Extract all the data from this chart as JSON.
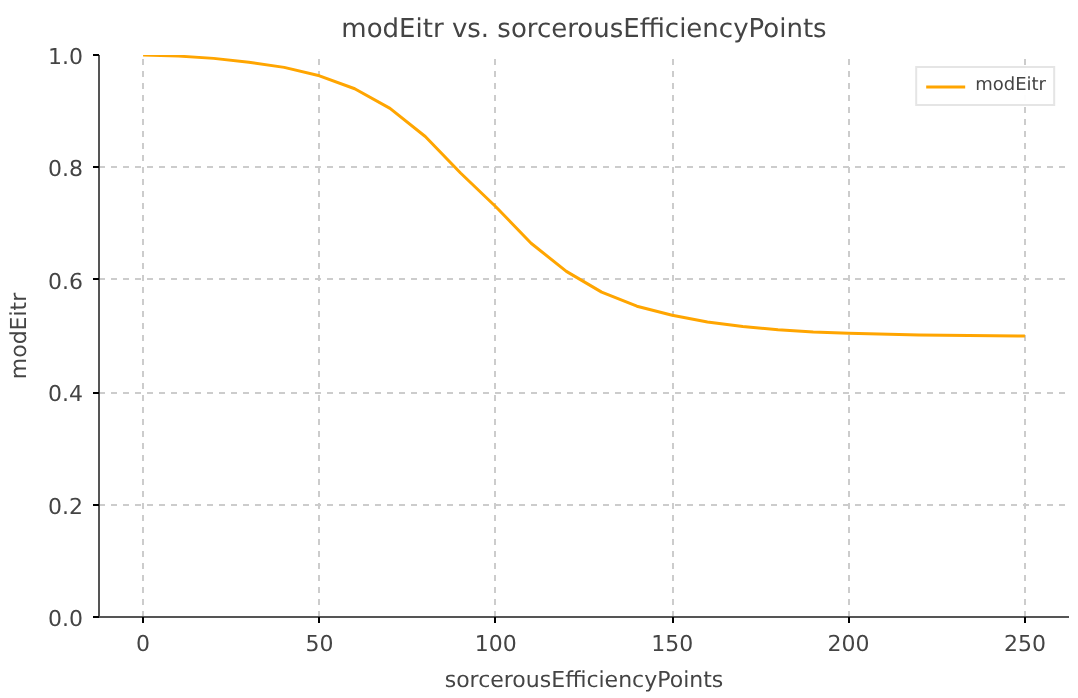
{
  "chart_data": {
    "type": "line",
    "title": "modEitr vs. sorcerousEfficiencyPoints",
    "xlabel": "sorcerousEfficiencyPoints",
    "ylabel": "modEitr",
    "x": [
      0,
      10,
      20,
      30,
      40,
      50,
      60,
      70,
      80,
      90,
      100,
      110,
      120,
      130,
      140,
      150,
      160,
      170,
      180,
      190,
      200,
      220,
      250
    ],
    "series": [
      {
        "name": "modEitr",
        "color": "#ffa500",
        "values": [
          1.0,
          0.998,
          0.994,
          0.987,
          0.978,
          0.963,
          0.94,
          0.905,
          0.855,
          0.79,
          0.73,
          0.665,
          0.615,
          0.578,
          0.553,
          0.537,
          0.525,
          0.517,
          0.511,
          0.507,
          0.505,
          0.502,
          0.5
        ]
      }
    ],
    "xlim": [
      -12.5,
      262.5
    ],
    "ylim": [
      0,
      1.0
    ],
    "xticks": [
      0,
      50,
      100,
      150,
      200,
      250
    ],
    "yticks": [
      {
        "value": 0,
        "label": "0.0"
      },
      {
        "value": 0.2,
        "label": "0.2"
      },
      {
        "value": 0.4,
        "label": "0.4"
      },
      {
        "value": 0.6,
        "label": "0.6"
      },
      {
        "value": 0.8,
        "label": "0.8"
      },
      {
        "value": 1.0,
        "label": "1.0"
      }
    ],
    "grid": true,
    "legend": "top right",
    "line_style": "solid"
  }
}
